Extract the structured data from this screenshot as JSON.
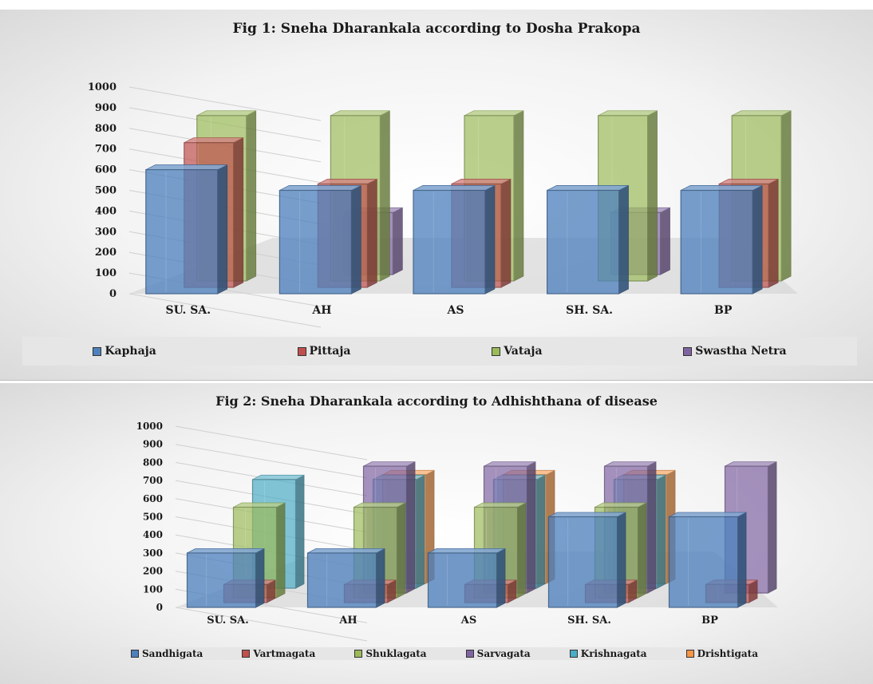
{
  "colors": {
    "blue": "#4f81bd",
    "red": "#c0504d",
    "green": "#9bbb59",
    "purple": "#8064a2",
    "aqua": "#4bacc6",
    "orange": "#f79646"
  },
  "chart_data": [
    {
      "type": "bar",
      "title": "Fig 1: Sneha Dharankala according to Dosha Prakopa",
      "categories": [
        "SU. SA.",
        "AH",
        "AS",
        "SH. SA.",
        "BP"
      ],
      "ylim": [
        0,
        1000
      ],
      "yticks": [
        "0",
        "100",
        "200",
        "300",
        "400",
        "500",
        "600",
        "700",
        "800",
        "900",
        "1000"
      ],
      "grid": true,
      "legend_position": "bottom",
      "series": [
        {
          "name": "Kaphaja",
          "color": "#4f81bd",
          "values": [
            600,
            500,
            500,
            500,
            500
          ]
        },
        {
          "name": "Pittaja",
          "color": "#c0504d",
          "values": [
            700,
            500,
            500,
            0,
            500
          ]
        },
        {
          "name": "Vataja",
          "color": "#9bbb59",
          "values": [
            800,
            800,
            800,
            800,
            800
          ]
        },
        {
          "name": "Swastha Netra",
          "color": "#8064a2",
          "values": [
            0,
            300,
            0,
            300,
            0
          ]
        }
      ]
    },
    {
      "type": "bar",
      "title": "Fig 2: Sneha Dharankala according to Adhishthana of disease",
      "categories": [
        "SU. SA.",
        "AH",
        "AS",
        "SH. SA.",
        "BP"
      ],
      "ylim": [
        0,
        1000
      ],
      "yticks": [
        "0",
        "100",
        "200",
        "300",
        "400",
        "500",
        "600",
        "700",
        "800",
        "900",
        "1000"
      ],
      "grid": true,
      "legend_position": "bottom",
      "series": [
        {
          "name": "Sandhigata",
          "color": "#4f81bd",
          "values": [
            300,
            300,
            300,
            500,
            500
          ]
        },
        {
          "name": "Vartmagata",
          "color": "#c0504d",
          "values": [
            100,
            100,
            100,
            100,
            100
          ]
        },
        {
          "name": "Shuklagata",
          "color": "#9bbb59",
          "values": [
            500,
            500,
            500,
            500,
            0
          ]
        },
        {
          "name": "Sarvagata",
          "color": "#8064a2",
          "values": [
            0,
            700,
            700,
            700,
            700
          ]
        },
        {
          "name": "Krishnagata",
          "color": "#4bacc6",
          "values": [
            600,
            600,
            600,
            600,
            0
          ]
        },
        {
          "name": "Drishtigata",
          "color": "#f79646",
          "values": [
            0,
            600,
            600,
            600,
            0
          ]
        }
      ]
    }
  ]
}
